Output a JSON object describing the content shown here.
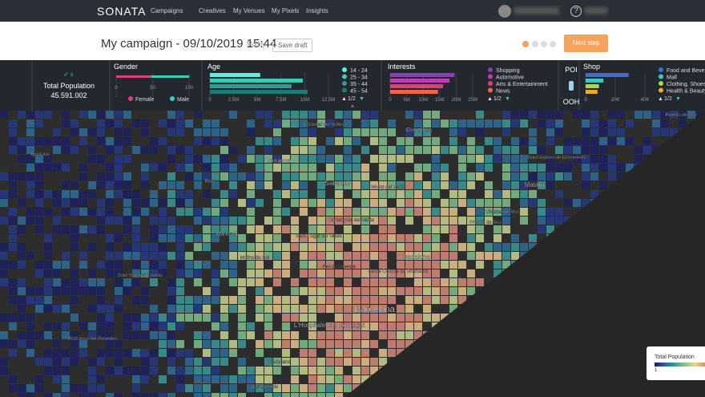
{
  "nav": {
    "brand": "SONATA",
    "links": [
      "Campaigns",
      "Creatives",
      "My Venues",
      "My Pixels",
      "Insights"
    ]
  },
  "header": {
    "title": "My campaign - 09/10/2019 15:44",
    "modify": "Modify",
    "save": "Save draft",
    "next": "Next step"
  },
  "stats": {
    "total": {
      "label": "Total Population",
      "value": "45.591.002"
    },
    "gender": {
      "title": "Gender",
      "xlim": [
        0,
        100
      ],
      "ticks": [
        0,
        50,
        100
      ],
      "stacked": true,
      "series": [
        {
          "name": "Female",
          "color": "#e0407a",
          "value": 48
        },
        {
          "name": "Male",
          "color": "#3ccfc0",
          "value": 52
        }
      ]
    },
    "age": {
      "title": "Age",
      "xlim": [
        0,
        12500000
      ],
      "page": "1/2",
      "ticks": [
        0,
        {
          "value": 2500000,
          "label": "2.5M"
        },
        {
          "value": 5000000,
          "label": "5M"
        },
        {
          "value": 7500000,
          "label": "7.5M"
        },
        {
          "value": 10000000,
          "label": "10M"
        },
        {
          "value": 12500000,
          "label": "12.5M"
        }
      ],
      "series": [
        {
          "name": "14 - 24",
          "color": "#5df2e0",
          "value": 5300000
        },
        {
          "name": "25 - 34",
          "color": "#3cc9b8",
          "value": 9800000
        },
        {
          "name": "35 - 44",
          "color": "#2a9d94",
          "value": 8600000
        },
        {
          "name": "45 - 54",
          "color": "#1f7a78",
          "value": 10300000
        }
      ]
    },
    "interests": {
      "title": "Interests",
      "xlim": [
        0,
        25000000
      ],
      "page": "1/2",
      "ticks": [
        0,
        {
          "value": 5000000,
          "label": "5M"
        },
        {
          "value": 10000000,
          "label": "10M"
        },
        {
          "value": 15000000,
          "label": "15M"
        },
        {
          "value": 20000000,
          "label": "20M"
        },
        {
          "value": 25000000,
          "label": "25M"
        }
      ],
      "series": [
        {
          "name": "Shopping",
          "color": "#8e3bbf",
          "value": 19500000
        },
        {
          "name": "Automotive",
          "color": "#c03ab0",
          "value": 18000000
        },
        {
          "name": "Arts & Entertainment",
          "color": "#e83c7a",
          "value": 16000000
        },
        {
          "name": "News",
          "color": "#f0644a",
          "value": 14500000
        }
      ]
    },
    "poi": {
      "title": "POI",
      "ooh": "OOH"
    },
    "shop": {
      "title": "Shop",
      "xlim": [
        0,
        40000
      ],
      "page": "1/2",
      "ticks": [
        0,
        {
          "value": 20000,
          "label": "20K"
        },
        {
          "value": 40000,
          "label": "40K"
        }
      ],
      "series": [
        {
          "name": "Food and Beverage",
          "color": "#3a6fd8",
          "value": 29000
        },
        {
          "name": "Mall",
          "color": "#3cc9b8",
          "value": 12000
        },
        {
          "name": "Clothing, Shoes and Accessories",
          "color": "#a6d84a",
          "value": 9000
        },
        {
          "name": "Health & Beauty",
          "color": "#f0a830",
          "value": 8000
        }
      ]
    }
  },
  "map": {
    "places": [
      "Terrassa",
      "Sabadell",
      "Mataró",
      "Badalona",
      "Barcelona",
      "L'Hospitalet de Llobregat",
      "Martorell",
      "Granollers",
      "Castellar del Vallès",
      "Rubí",
      "Sant Cugat del Vallès",
      "Cerdanyola del Vallès",
      "Mollet del Vallès",
      "Premià de Mar",
      "Vilassar de Mar",
      "Igualada",
      "Sant Sadurní d'Anoia",
      "Vilafranca del Penedès",
      "Molins de Rei",
      "Santa Coloma de Gramenet",
      "Viladecans",
      "Castelldefels",
      "Sant Andreu de Llavaneres",
      "Parc de Collserola",
      "Pineda de Mar"
    ]
  },
  "legend": {
    "title": "Total Population",
    "min": "1"
  }
}
